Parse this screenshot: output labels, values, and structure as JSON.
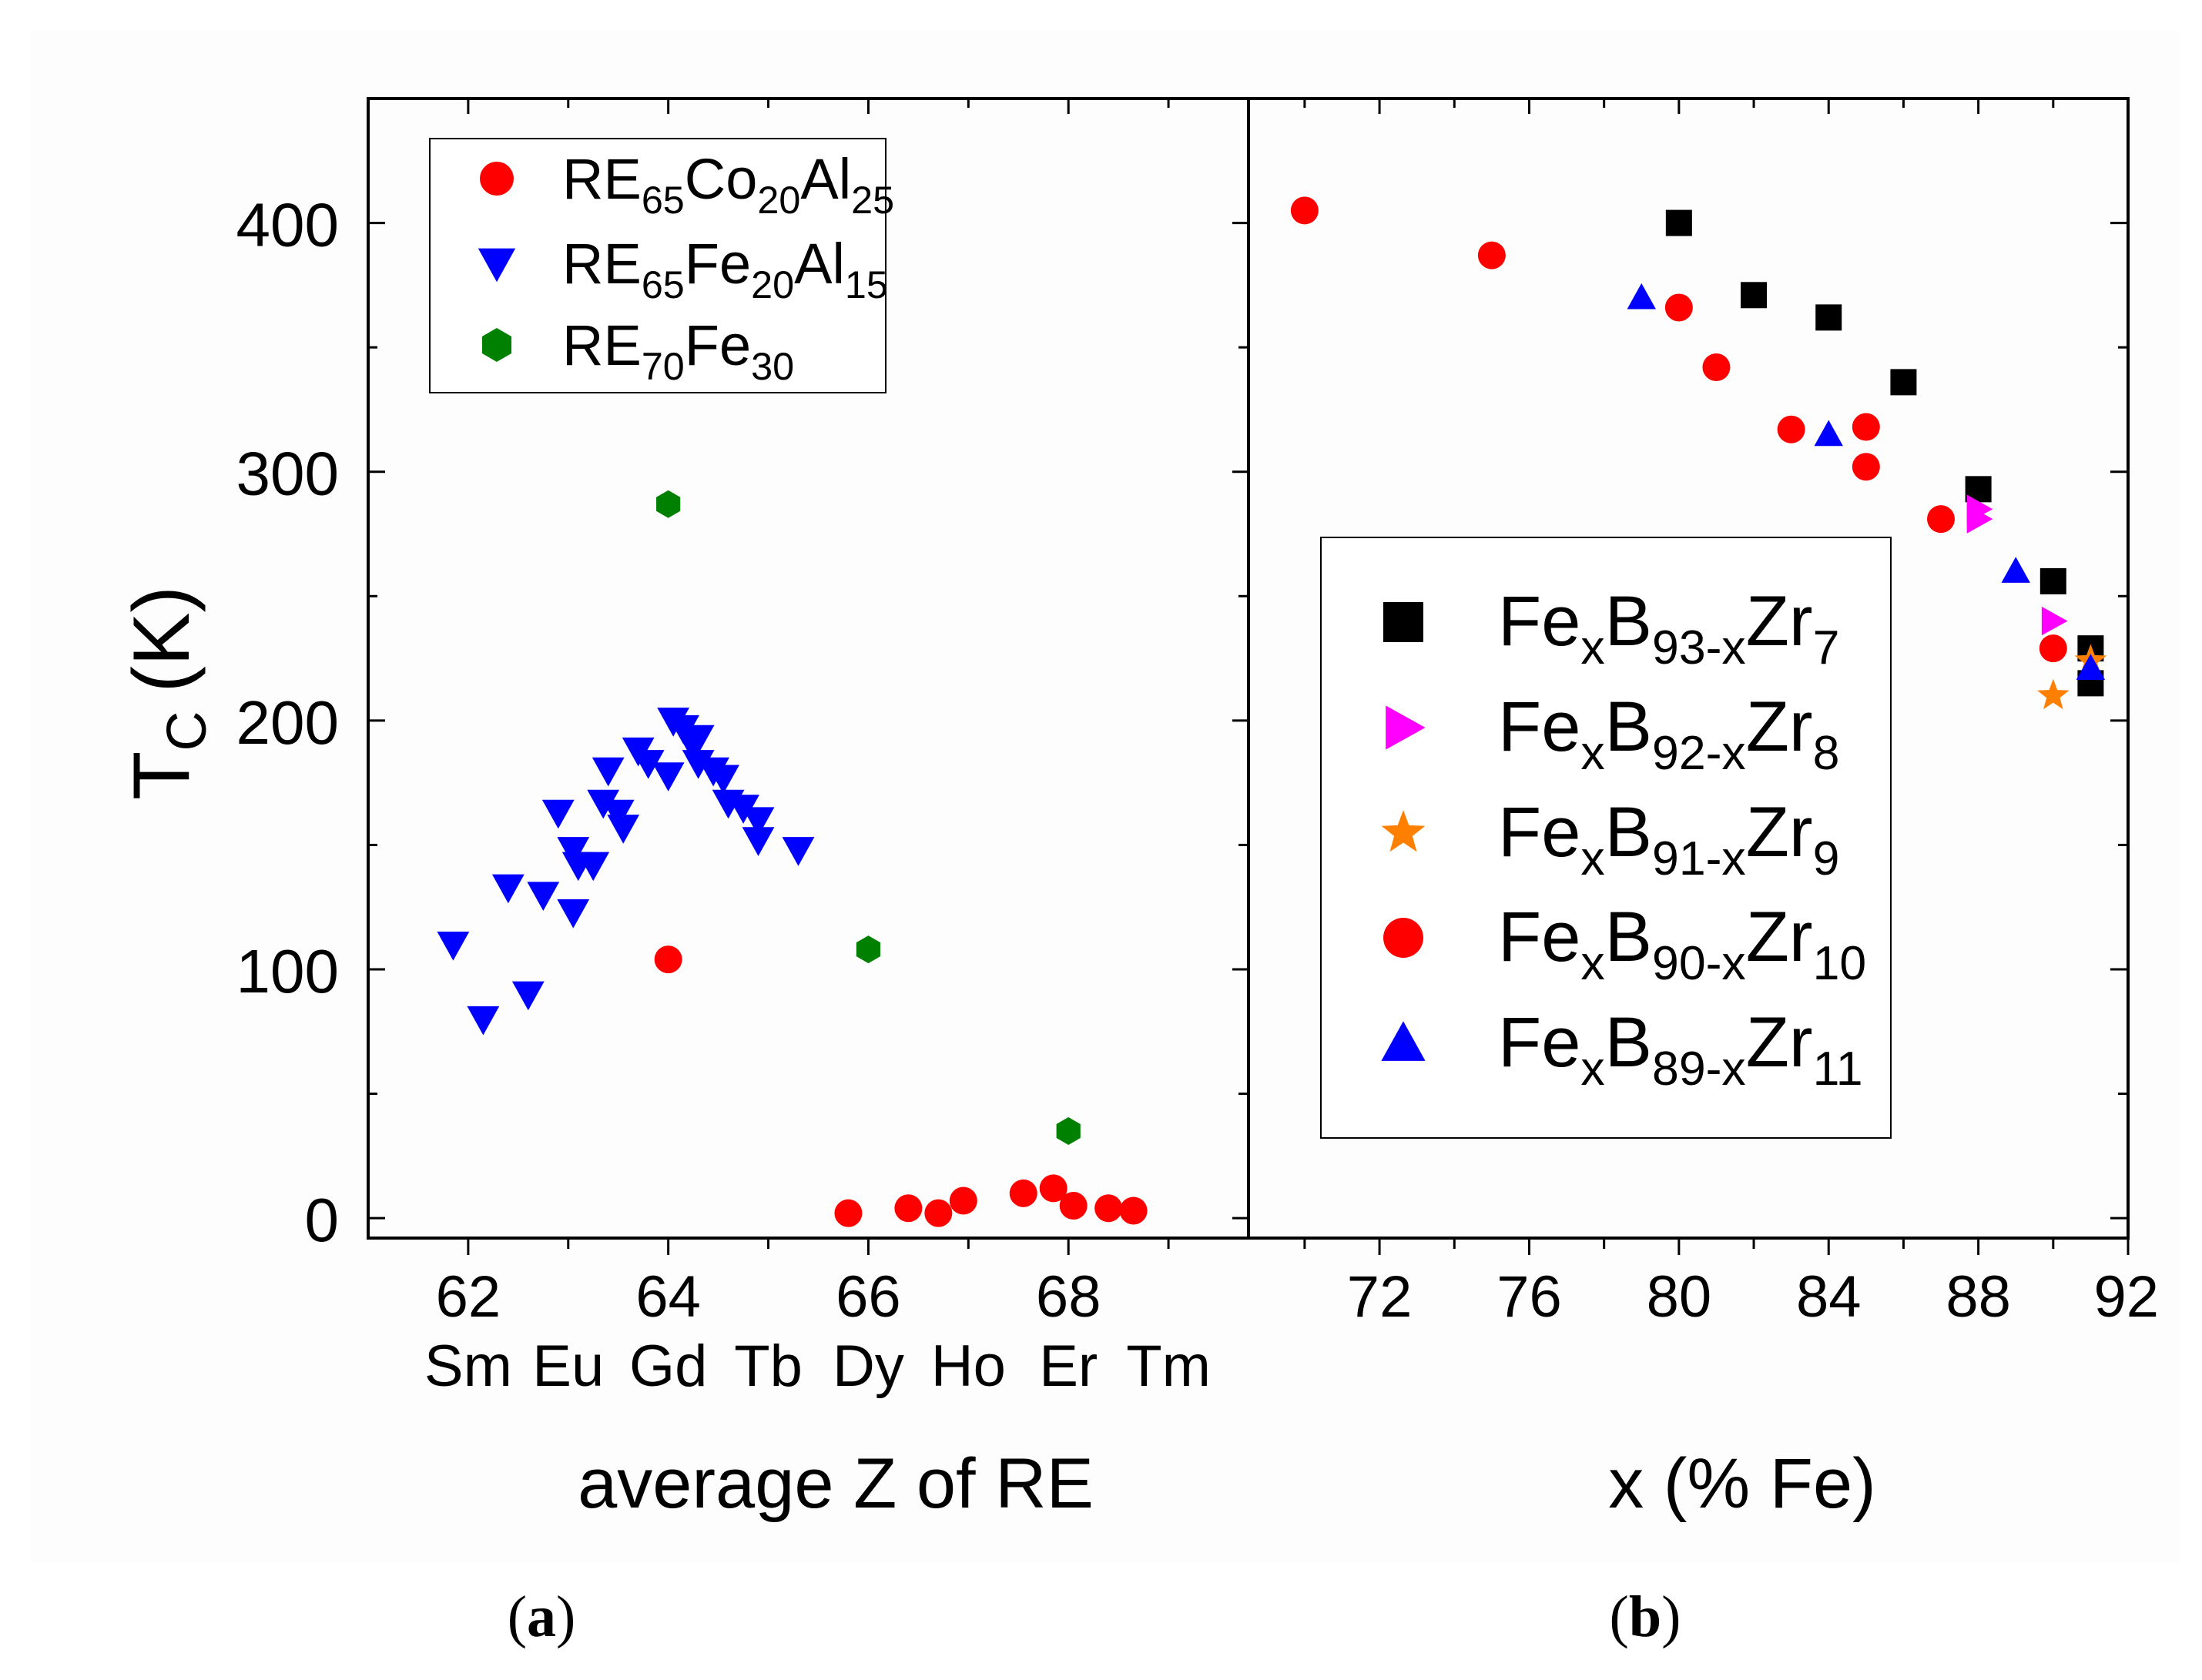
{
  "ylabel": {
    "main": "T",
    "sub": "C",
    "unit": "(K)"
  },
  "caption_a": {
    "open": "(",
    "letter": "a",
    "close": ")"
  },
  "caption_b": {
    "open": "(",
    "letter": "b",
    "close": ")"
  },
  "chart_data": [
    {
      "type": "scatter",
      "panel": "a",
      "xlabel": "average Z of RE",
      "ylabel": "T_C (K)",
      "xlim": [
        61,
        69.8
      ],
      "ylim": [
        -8,
        450
      ],
      "xticks": [
        62,
        64,
        66,
        68
      ],
      "xtick_labels": [
        "62",
        "64",
        "66",
        "68"
      ],
      "yticks": [
        0,
        100,
        200,
        300,
        400
      ],
      "ytick_labels": [
        "0",
        "100",
        "200",
        "300",
        "400"
      ],
      "element_labels": [
        {
          "z": 62,
          "label": "Sm"
        },
        {
          "z": 63,
          "label": "Eu"
        },
        {
          "z": 64,
          "label": "Gd"
        },
        {
          "z": 65,
          "label": "Tb"
        },
        {
          "z": 66,
          "label": "Dy"
        },
        {
          "z": 67,
          "label": "Ho"
        },
        {
          "z": 68,
          "label": "Er"
        },
        {
          "z": 69,
          "label": "Tm"
        }
      ],
      "legend_position": "top-left",
      "series": [
        {
          "name": "RE65Co20Al25",
          "legend_parts": [
            [
              "RE",
              ""
            ],
            [
              "65",
              "sub"
            ],
            [
              "Co",
              ""
            ],
            [
              "20",
              "sub"
            ],
            [
              "Al",
              ""
            ],
            [
              "25",
              "sub"
            ]
          ],
          "marker": "circle",
          "color": "#ff0000",
          "x": [
            64.0,
            65.8,
            66.4,
            66.7,
            66.95,
            67.55,
            67.85,
            68.05,
            68.4,
            68.65
          ],
          "y": [
            104,
            2,
            4,
            2,
            7,
            10,
            12,
            5,
            4,
            3
          ]
        },
        {
          "name": "RE65Fe20Al15",
          "legend_parts": [
            [
              "RE",
              ""
            ],
            [
              "65",
              "sub"
            ],
            [
              "Fe",
              ""
            ],
            [
              "20",
              "sub"
            ],
            [
              "Al",
              ""
            ],
            [
              "15",
              "sub"
            ]
          ],
          "marker": "triangle-down",
          "color": "#0000ff",
          "x": [
            61.85,
            62.15,
            62.4,
            62.6,
            62.75,
            62.9,
            63.05,
            63.1,
            63.05,
            63.25,
            63.35,
            63.4,
            63.5,
            63.55,
            63.7,
            63.8,
            64.0,
            64.05,
            64.15,
            64.25,
            64.3,
            64.3,
            64.45,
            64.55,
            64.6,
            64.75,
            64.9,
            64.9,
            65.3
          ],
          "y": [
            110,
            80,
            133,
            90,
            130,
            163,
            148,
            142,
            123,
            142,
            167,
            180,
            163,
            157,
            188,
            183,
            178,
            200,
            197,
            190,
            193,
            183,
            180,
            177,
            167,
            165,
            160,
            152,
            148
          ]
        },
        {
          "name": "RE70Fe30",
          "legend_parts": [
            [
              "RE",
              ""
            ],
            [
              "70",
              "sub"
            ],
            [
              "Fe",
              ""
            ],
            [
              "30",
              "sub"
            ]
          ],
          "marker": "hexagon",
          "color": "#008000",
          "x": [
            64.0,
            66.0,
            68.0
          ],
          "y": [
            287,
            108,
            35
          ]
        }
      ]
    },
    {
      "type": "scatter",
      "panel": "b",
      "xlabel": "x (% Fe)",
      "ylabel": "T_C (K)",
      "xlim": [
        68.5,
        92
      ],
      "ylim": [
        -8,
        450
      ],
      "xticks": [
        72,
        76,
        80,
        84,
        88,
        92
      ],
      "xtick_labels": [
        "72",
        "76",
        "80",
        "84",
        "88",
        "92"
      ],
      "yticks": [
        0,
        100,
        200,
        300,
        400
      ],
      "legend_position": "center",
      "series": [
        {
          "name": "FexB93-xZr7",
          "legend_parts": [
            [
              "Fe",
              ""
            ],
            [
              "x",
              "sub"
            ],
            [
              "B",
              ""
            ],
            [
              "93-x",
              "sub"
            ],
            [
              "Zr",
              ""
            ],
            [
              "7",
              "sub"
            ]
          ],
          "marker": "square",
          "color": "#000000",
          "x": [
            80,
            82,
            84,
            86,
            88,
            90,
            91,
            91
          ],
          "y": [
            400,
            371,
            362,
            336,
            293,
            256,
            229,
            215
          ]
        },
        {
          "name": "FexB92-xZr8",
          "legend_parts": [
            [
              "Fe",
              ""
            ],
            [
              "x",
              "sub"
            ],
            [
              "B",
              ""
            ],
            [
              "92-x",
              "sub"
            ],
            [
              "Zr",
              ""
            ],
            [
              "8",
              "sub"
            ]
          ],
          "marker": "triangle-right",
          "color": "#ff00ff",
          "x": [
            88,
            88,
            90
          ],
          "y": [
            285,
            281,
            240
          ]
        },
        {
          "name": "FexB91-xZr9",
          "legend_parts": [
            [
              "Fe",
              ""
            ],
            [
              "x",
              "sub"
            ],
            [
              "B",
              ""
            ],
            [
              "91-x",
              "sub"
            ],
            [
              "Zr",
              ""
            ],
            [
              "9",
              "sub"
            ]
          ],
          "marker": "star",
          "color": "#ff8000",
          "x": [
            90,
            91
          ],
          "y": [
            210,
            224
          ]
        },
        {
          "name": "FexB90-xZr10",
          "legend_parts": [
            [
              "Fe",
              ""
            ],
            [
              "x",
              "sub"
            ],
            [
              "B",
              ""
            ],
            [
              "90-x",
              "sub"
            ],
            [
              "Zr",
              ""
            ],
            [
              "10",
              "sub"
            ]
          ],
          "marker": "circle",
          "color": "#ff0000",
          "x": [
            70,
            75,
            80,
            81,
            83,
            85,
            85,
            87,
            90
          ],
          "y": [
            405,
            387,
            366,
            342,
            317,
            318,
            302,
            281,
            229
          ]
        },
        {
          "name": "FexB89-xZr11",
          "legend_parts": [
            [
              "Fe",
              ""
            ],
            [
              "x",
              "sub"
            ],
            [
              "B",
              ""
            ],
            [
              "89-x",
              "sub"
            ],
            [
              "Zr",
              ""
            ],
            [
              "11",
              "sub"
            ]
          ],
          "marker": "triangle-up",
          "color": "#0000ff",
          "x": [
            79,
            84,
            89,
            91
          ],
          "y": [
            370,
            315,
            260,
            221
          ]
        }
      ]
    }
  ]
}
